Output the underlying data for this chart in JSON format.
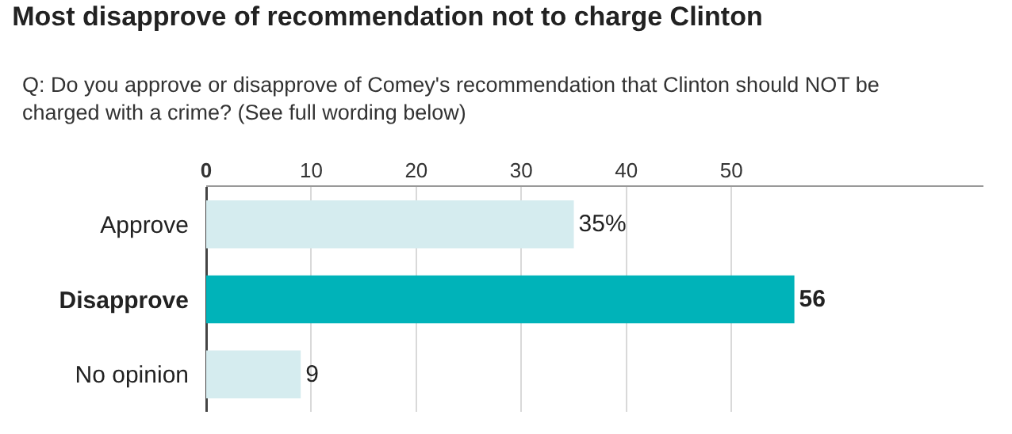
{
  "chart_data": {
    "type": "bar",
    "orientation": "horizontal",
    "title": "Most disapprove of recommendation not to charge Clinton",
    "subtitle": "Q: Do you approve or disapprove of Comey's recommendation that Clinton should NOT be charged with a crime? (See full wording below)",
    "categories": [
      "Approve",
      "Disapprove",
      "No opinion"
    ],
    "values": [
      35,
      56,
      9
    ],
    "colors": [
      "#d5ecef",
      "#00b3b9",
      "#d5ecef"
    ],
    "value_labels": [
      "35%",
      "56",
      "9"
    ],
    "xlim": [
      0,
      74
    ],
    "xticks": [
      0,
      10,
      20,
      30,
      40,
      50
    ],
    "grid": "x"
  }
}
